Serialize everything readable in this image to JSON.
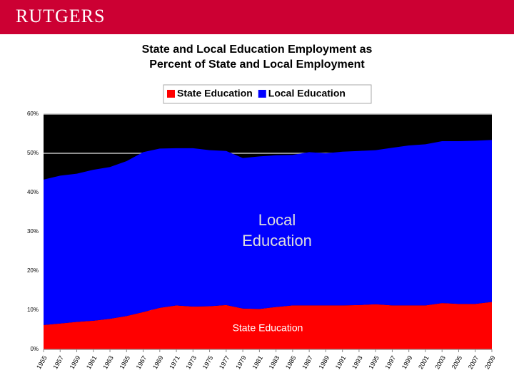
{
  "header": {
    "logo": "RUTGERS"
  },
  "chart_data": {
    "type": "stacked-area",
    "title": [
      "State and Local Education Employment as",
      "Percent of State and Local Employment"
    ],
    "x": [
      1955,
      1957,
      1959,
      1961,
      1963,
      1965,
      1967,
      1969,
      1971,
      1973,
      1975,
      1977,
      1979,
      1981,
      1983,
      1985,
      1987,
      1989,
      1991,
      1993,
      1995,
      1997,
      1999,
      2001,
      2003,
      2005,
      2007,
      2009
    ],
    "xlim": [
      1955,
      2009
    ],
    "xticks": [
      1955,
      1957,
      1959,
      1961,
      1963,
      1965,
      1967,
      1969,
      1971,
      1973,
      1975,
      1977,
      1979,
      1981,
      1983,
      1985,
      1987,
      1989,
      1991,
      1993,
      1995,
      1997,
      1999,
      2001,
      2003,
      2005,
      2007,
      2009
    ],
    "ylim": [
      0,
      60
    ],
    "yticks": [
      {
        "value": 0,
        "label": "0%"
      },
      {
        "value": 10,
        "label": "10%"
      },
      {
        "value": 20,
        "label": "20%"
      },
      {
        "value": 30,
        "label": "30%"
      },
      {
        "value": 40,
        "label": "40%"
      },
      {
        "value": 50,
        "label": "50%"
      },
      {
        "value": 60,
        "label": "60%"
      }
    ],
    "grid": true,
    "background": "#000000",
    "series": [
      {
        "name": "State Education",
        "color": "#ff0000",
        "values": [
          6.2,
          6.6,
          7.0,
          7.3,
          7.8,
          8.5,
          9.5,
          10.6,
          11.2,
          10.9,
          11.0,
          11.3,
          10.4,
          10.3,
          10.8,
          11.2,
          11.2,
          11.2,
          11.2,
          11.3,
          11.5,
          11.2,
          11.2,
          11.2,
          11.8,
          11.6,
          11.6,
          12.1
        ]
      },
      {
        "name": "Local Education",
        "color": "#0000ff",
        "values": [
          37.1,
          37.7,
          37.8,
          38.5,
          38.7,
          39.5,
          40.8,
          40.6,
          40.1,
          40.4,
          39.8,
          39.3,
          38.4,
          38.9,
          38.7,
          38.4,
          39.1,
          38.8,
          39.2,
          39.3,
          39.3,
          40.2,
          40.8,
          41.1,
          41.3,
          41.5,
          41.6,
          41.3
        ]
      }
    ],
    "annotations": [
      [
        "Local",
        "Education"
      ],
      [
        "State Education"
      ]
    ]
  }
}
